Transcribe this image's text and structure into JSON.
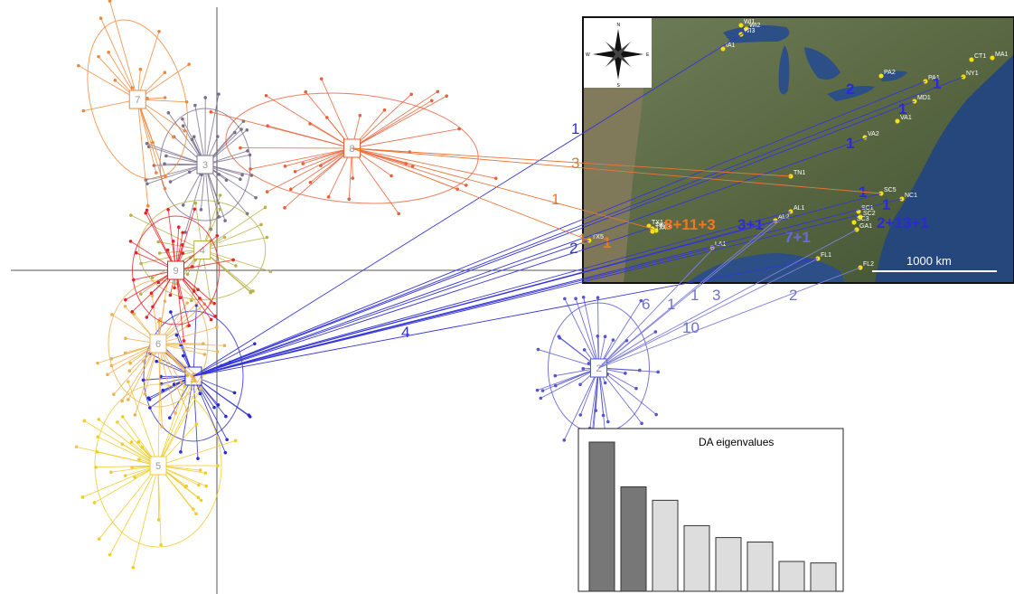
{
  "chart_data": [
    {
      "type": "scatter",
      "axes": {
        "x_origin": 0,
        "y_origin": 0
      },
      "clusters": [
        {
          "id": "1",
          "color": "#2a2ad0",
          "n": 32,
          "center": [
            -0.4,
            -1.3
          ]
        },
        {
          "id": "2",
          "color": "#5555cc",
          "n": 40,
          "center": [
            6.5,
            -1.2
          ]
        },
        {
          "id": "3",
          "color": "#7a6f8c",
          "n": 40,
          "center": [
            -0.2,
            1.3
          ]
        },
        {
          "id": "4",
          "color": "#b9b24a",
          "n": 28,
          "center": [
            -0.25,
            0.25
          ]
        },
        {
          "id": "5",
          "color": "#f0cc2a",
          "n": 45,
          "center": [
            -1.0,
            -2.4
          ]
        },
        {
          "id": "6",
          "color": "#eeb050",
          "n": 40,
          "center": [
            -1.0,
            -0.9
          ]
        },
        {
          "id": "7",
          "color": "#f0883a",
          "n": 24,
          "center": [
            -1.35,
            2.1
          ]
        },
        {
          "id": "8",
          "color": "#e8603a",
          "n": 36,
          "center": [
            2.3,
            1.5
          ]
        },
        {
          "id": "9",
          "color": "#e8222a",
          "n": 36,
          "center": [
            -0.7,
            0.0
          ]
        }
      ],
      "link_labels": [
        {
          "text": "1",
          "color": "#3030d0"
        },
        {
          "text": "3",
          "color": "#e07a30"
        },
        {
          "text": "1",
          "color": "#e07a30"
        },
        {
          "text": "2",
          "color": "#3030d0"
        },
        {
          "text": "1",
          "color": "#e07a30"
        },
        {
          "text": "4",
          "color": "#3030d0"
        },
        {
          "text": "6",
          "color": "#7070cc"
        },
        {
          "text": "1",
          "color": "#7070cc"
        },
        {
          "text": "1",
          "color": "#7070cc"
        },
        {
          "text": "3",
          "color": "#7070cc"
        },
        {
          "text": "2",
          "color": "#7070cc"
        },
        {
          "text": "10",
          "color": "#7070cc"
        }
      ]
    },
    {
      "type": "bar",
      "title": "DA eigenvalues",
      "values": [
        100,
        70,
        61,
        44,
        36,
        33,
        20,
        19
      ],
      "retained": 2,
      "colors": {
        "retained": "#777777",
        "other": "#dddddd"
      }
    }
  ],
  "map": {
    "scale_label": "1000 km",
    "compass": {
      "n": "N",
      "s": "S",
      "e": "E",
      "w": "W"
    },
    "sites": [
      {
        "name": "WI1"
      },
      {
        "name": "WI2"
      },
      {
        "name": "WI3"
      },
      {
        "name": "IA1"
      },
      {
        "name": "PA2"
      },
      {
        "name": "PA1"
      },
      {
        "name": "NY1"
      },
      {
        "name": "CT1"
      },
      {
        "name": "MA1"
      },
      {
        "name": "MD1"
      },
      {
        "name": "VA1"
      },
      {
        "name": "VA2"
      },
      {
        "name": "TN1"
      },
      {
        "name": "SC5"
      },
      {
        "name": "NC1"
      },
      {
        "name": "SC1"
      },
      {
        "name": "SC2"
      },
      {
        "name": "SC3"
      },
      {
        "name": "GA1"
      },
      {
        "name": "AL2"
      },
      {
        "name": "AL1"
      },
      {
        "name": "LA1"
      },
      {
        "name": "FL1"
      },
      {
        "name": "FL2"
      },
      {
        "name": "TX1"
      },
      {
        "name": "TX2"
      },
      {
        "name": "TX3"
      },
      {
        "name": "TX4"
      },
      {
        "name": "TX5"
      }
    ],
    "labels": [
      {
        "text": "2",
        "color": "#2a2ad8"
      },
      {
        "text": "1",
        "color": "#2a2ad8"
      },
      {
        "text": "1",
        "color": "#2a2ad8"
      },
      {
        "text": "1",
        "color": "#2a2ad8"
      },
      {
        "text": "1",
        "color": "#2a2ad8"
      },
      {
        "text": "1",
        "color": "#2a2ad8"
      },
      {
        "text": "8+11+3",
        "color": "#f07820"
      },
      {
        "text": "3+1",
        "color": "#2a2ad8"
      },
      {
        "text": "7+1",
        "color": "#6a6ae0"
      },
      {
        "text": "2+13+1",
        "color": "#2a2ad8"
      },
      {
        "text": "1",
        "color": "#f07820"
      }
    ]
  }
}
